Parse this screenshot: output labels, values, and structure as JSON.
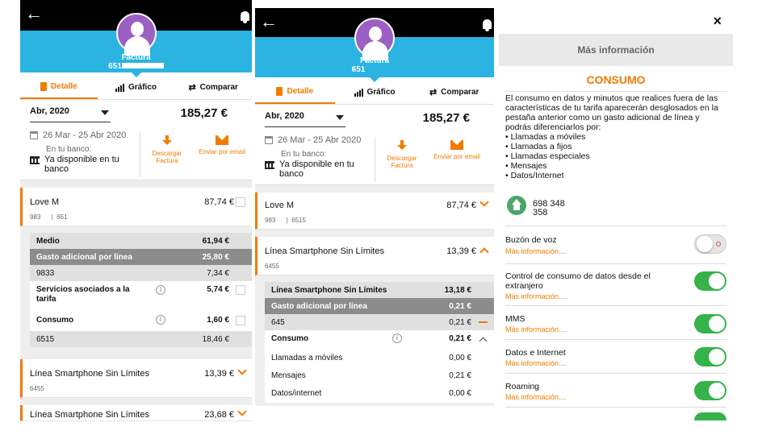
{
  "p1": {
    "header": {
      "title": "Factura",
      "number_prefix": "651"
    },
    "tabs": [
      {
        "label": "Detalle"
      },
      {
        "label": "Gráfico"
      },
      {
        "label": "Comparar"
      }
    ],
    "period": {
      "selected": "Abr, 2020",
      "total": "185,27 €",
      "range": "26 Mar - 25 Abr 2020"
    },
    "bank": {
      "label": "En tu banco:",
      "value": "Ya disponible en tu banco"
    },
    "actions": {
      "download": "Descargar Factura",
      "email": "Enviar por email"
    },
    "love": {
      "name": "Love M",
      "sub1": "983",
      "sub2": "651",
      "amount": "87,74 €"
    },
    "rows": [
      {
        "label": "Medio",
        "amount": "61,94 €"
      },
      {
        "label": "Gasto adicional por línea",
        "amount": "25,80 €"
      },
      {
        "label": "9833",
        "amount": "7,34 €"
      },
      {
        "label": "Servicios asociados a la tarifa",
        "amount": "5,74 €"
      },
      {
        "label": "Consumo",
        "amount": "1,60 €"
      },
      {
        "label": "6515",
        "amount": "18,46 €"
      }
    ],
    "line1": {
      "name": "Línea Smartphone Sin Límites",
      "sub": "6455",
      "amount": "13,39 €"
    },
    "line2": {
      "name": "Línea Smartphone Sin Límites",
      "amount": "23,68 €"
    }
  },
  "p2": {
    "header": {
      "title": "Factura",
      "number_prefix": "651"
    },
    "tabs": [
      {
        "label": "Detalle"
      },
      {
        "label": "Gráfico"
      },
      {
        "label": "Comparar"
      }
    ],
    "period": {
      "selected": "Abr, 2020",
      "total": "185,27 €",
      "range": "26 Mar - 25 Abr 2020"
    },
    "bank": {
      "label": "En tu banco:",
      "value": "Ya disponible en tu banco"
    },
    "actions": {
      "download": "Descargar Factura",
      "email": "Enviar por email"
    },
    "love": {
      "name": "Love M",
      "sub1": "983",
      "sub2": "6515",
      "amount": "87,74 €"
    },
    "line": {
      "name": "Línea Smartphone Sin Límites",
      "sub": "6455",
      "amount": "13,39 €"
    },
    "rows": [
      {
        "label": "Línea Smartphone Sin Límites",
        "amount": "13,18 €"
      },
      {
        "label": "Gasto adicional por línea",
        "amount": "0,21 €"
      },
      {
        "label": "645",
        "amount": "0,21 €"
      },
      {
        "label": "Consumo",
        "amount": "0,21 €"
      },
      {
        "label": "Llamadas a móviles",
        "amount": "0,00 €"
      },
      {
        "label": "Mensajes",
        "amount": "0,21 €"
      },
      {
        "label": "Datos/internet",
        "amount": "0,00 €"
      }
    ]
  },
  "p3": {
    "close": "×",
    "title_bar": "Más información",
    "heading": "CONSUMO",
    "description": "El consumo en datos y minutos que realices fuera de las características de tu tarifa aparecerán desglosados en la pestaña anterior como un gasto adicional de línea y podrás diferenciarlos por:",
    "bullets": [
      "Llamadas a móviles",
      "Llamadas a fijos",
      "Llamadas especiales",
      "Mensajes",
      "Datos/Internet"
    ],
    "phone_partial": "698 348 358",
    "services": [
      {
        "name": "Buzón de voz",
        "more": "Más información....",
        "enabled": false
      },
      {
        "name": "Control de consumo de datos desde el extranjero",
        "more": "Más información....",
        "enabled": true
      },
      {
        "name": "MMS",
        "more": "Más información....",
        "enabled": true
      },
      {
        "name": "Datos e Internet",
        "more": "Más información....",
        "enabled": true
      },
      {
        "name": "Roaming",
        "more": "Más información....",
        "enabled": true
      }
    ]
  },
  "colors": {
    "accent": "#f07c00",
    "header_blue": "#2bb3e2",
    "toggle_on": "#35b24a",
    "avatar": "#9c5fc4"
  }
}
